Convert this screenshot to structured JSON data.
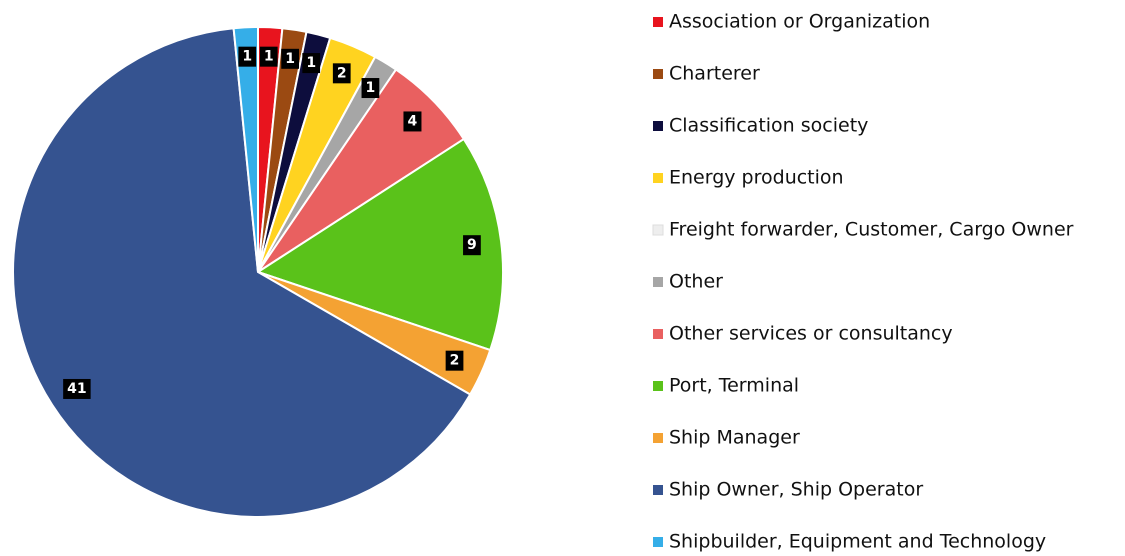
{
  "chart_data": {
    "type": "pie",
    "categories": [
      "Association or Organization",
      "Charterer",
      "Classification society",
      "Energy production",
      "Freight forwarder, Customer, Cargo Owner",
      "Other",
      "Other services or consultancy",
      "Port, Terminal",
      "Ship Manager",
      "Ship Owner, Ship Operator",
      "Shipbuilder, Equipment and Technology"
    ],
    "values": [
      1,
      1,
      1,
      2,
      0,
      1,
      4,
      9,
      2,
      41,
      1
    ],
    "colors": [
      "#e8141e",
      "#9b4a12",
      "#0d0d3d",
      "#ffd320",
      "#eeeeee",
      "#a6a6a6",
      "#e96060",
      "#5ac21a",
      "#f4a233",
      "#355390",
      "#35aee8"
    ],
    "legend": "right"
  }
}
